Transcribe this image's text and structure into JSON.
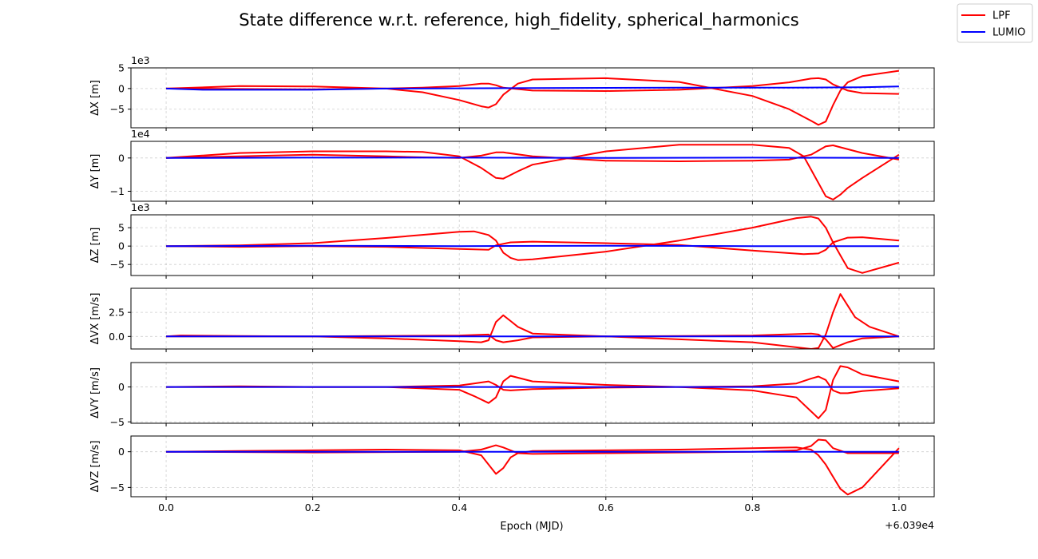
{
  "figure": {
    "title": "State difference w.r.t. reference, high_fidelity, spherical_harmonics",
    "xlabel": "Epoch (MJD)",
    "x_offset_text": "+6.039e4",
    "legend": [
      {
        "label": "LPF",
        "color": "#ff0000"
      },
      {
        "label": "LUMIO",
        "color": "#0000ff"
      }
    ]
  },
  "chart_data": [
    {
      "type": "line",
      "ylabel": "ΔX [m]",
      "exponent_label": "1e3",
      "xlim": [
        -0.048,
        1.048
      ],
      "ylim": [
        -9.5,
        5.0
      ],
      "x_ticks": [
        0.0,
        0.2,
        0.4,
        0.6,
        0.8,
        1.0
      ],
      "x_tick_labels": [
        "0.0",
        "0.2",
        "0.4",
        "0.6",
        "0.8",
        "1.0"
      ],
      "y_ticks": [
        5,
        0,
        -5
      ],
      "y_tick_labels": [
        "5",
        "0",
        "−5"
      ],
      "grid": true,
      "series": [
        {
          "name": "LPF",
          "color": "#ff0000",
          "x": [
            0,
            0.1,
            0.2,
            0.3,
            0.35,
            0.4,
            0.43,
            0.44,
            0.45,
            0.46,
            0.5,
            0.6,
            0.7,
            0.8,
            0.85,
            0.88,
            0.89,
            0.9,
            0.91,
            0.93,
            0.95,
            1.0
          ],
          "y": [
            0,
            0.6,
            0.5,
            0,
            0.2,
            0.6,
            1.2,
            1.2,
            0.8,
            0.2,
            -0.5,
            -0.6,
            -0.3,
            0.6,
            1.5,
            2.4,
            2.5,
            2.2,
            1.0,
            -0.5,
            -1.1,
            -1.3
          ]
        },
        {
          "name": "LPF",
          "color": "#ff0000",
          "x": [
            0,
            0.1,
            0.2,
            0.3,
            0.35,
            0.4,
            0.43,
            0.44,
            0.45,
            0.46,
            0.48,
            0.5,
            0.6,
            0.7,
            0.8,
            0.85,
            0.88,
            0.89,
            0.9,
            0.91,
            0.92,
            0.93,
            0.95,
            1.0
          ],
          "y": [
            0,
            -0.1,
            -0.2,
            0,
            -0.9,
            -2.8,
            -4.3,
            -4.6,
            -3.8,
            -1.5,
            1.2,
            2.2,
            2.5,
            1.6,
            -1.8,
            -5.0,
            -7.8,
            -8.8,
            -8.0,
            -4.0,
            -0.5,
            1.5,
            3.0,
            4.3
          ]
        },
        {
          "name": "LUMIO",
          "color": "#0000ff",
          "x": [
            0,
            0.05,
            0.2,
            0.3,
            0.5,
            0.7,
            0.85,
            0.95,
            1.0
          ],
          "y": [
            0,
            -0.3,
            -0.3,
            0,
            0.1,
            0.2,
            0.2,
            0.3,
            0.5
          ]
        }
      ]
    },
    {
      "type": "line",
      "ylabel": "ΔY [m]",
      "exponent_label": "1e4",
      "xlim": [
        -0.048,
        1.048
      ],
      "ylim": [
        -1.3,
        0.5
      ],
      "x_ticks": [
        0.0,
        0.2,
        0.4,
        0.6,
        0.8,
        1.0
      ],
      "x_tick_labels": [
        "0.0",
        "0.2",
        "0.4",
        "0.6",
        "0.8",
        "1.0"
      ],
      "y_ticks": [
        0,
        -1
      ],
      "y_tick_labels": [
        "0",
        "−1"
      ],
      "grid": true,
      "series": [
        {
          "name": "LPF",
          "color": "#ff0000",
          "x": [
            0,
            0.1,
            0.2,
            0.3,
            0.35,
            0.4,
            0.43,
            0.45,
            0.46,
            0.5,
            0.6,
            0.7,
            0.8,
            0.85,
            0.88,
            0.9,
            0.91,
            0.95,
            1.0
          ],
          "y": [
            0,
            0.05,
            0.1,
            0.05,
            0.02,
            0,
            0.07,
            0.17,
            0.17,
            0.05,
            -0.08,
            -0.1,
            -0.08,
            -0.05,
            0.1,
            0.35,
            0.38,
            0.15,
            -0.05
          ]
        },
        {
          "name": "LPF",
          "color": "#ff0000",
          "x": [
            0,
            0.1,
            0.2,
            0.3,
            0.35,
            0.4,
            0.43,
            0.45,
            0.46,
            0.48,
            0.5,
            0.6,
            0.7,
            0.8,
            0.85,
            0.87,
            0.88,
            0.9,
            0.91,
            0.92,
            0.93,
            0.95,
            1.0
          ],
          "y": [
            0,
            0.15,
            0.2,
            0.2,
            0.18,
            0.05,
            -0.3,
            -0.6,
            -0.62,
            -0.4,
            -0.2,
            0.2,
            0.4,
            0.4,
            0.3,
            0.05,
            -0.35,
            -1.15,
            -1.25,
            -1.1,
            -0.9,
            -0.6,
            0.1
          ]
        },
        {
          "name": "LUMIO",
          "color": "#0000ff",
          "x": [
            0,
            0.2,
            0.4,
            0.6,
            0.8,
            1.0
          ],
          "y": [
            0,
            0.01,
            0.01,
            0,
            0.01,
            0
          ]
        }
      ]
    },
    {
      "type": "line",
      "ylabel": "ΔZ [m]",
      "exponent_label": "1e3",
      "xlim": [
        -0.048,
        1.048
      ],
      "ylim": [
        -8.0,
        8.5
      ],
      "x_ticks": [
        0.0,
        0.2,
        0.4,
        0.6,
        0.8,
        1.0
      ],
      "x_tick_labels": [
        "0.0",
        "0.2",
        "0.4",
        "0.6",
        "0.8",
        "1.0"
      ],
      "y_ticks": [
        5,
        0,
        -5
      ],
      "y_tick_labels": [
        "5",
        "0",
        "−5"
      ],
      "grid": true,
      "series": [
        {
          "name": "LPF",
          "color": "#ff0000",
          "x": [
            0,
            0.1,
            0.2,
            0.3,
            0.4,
            0.42,
            0.44,
            0.45,
            0.46,
            0.47,
            0.48,
            0.5,
            0.6,
            0.7,
            0.8,
            0.86,
            0.88,
            0.89,
            0.9,
            0.91,
            0.92,
            0.93,
            0.95,
            1.0
          ],
          "y": [
            0,
            0.2,
            0.8,
            2.2,
            3.9,
            4.0,
            3.0,
            1.5,
            -1.8,
            -3.2,
            -3.8,
            -3.6,
            -1.5,
            1.5,
            5.0,
            7.6,
            8.0,
            7.5,
            5.0,
            1.0,
            -2.5,
            -6.0,
            -7.3,
            -4.5
          ]
        },
        {
          "name": "LPF",
          "color": "#ff0000",
          "x": [
            0,
            0.1,
            0.2,
            0.3,
            0.4,
            0.44,
            0.45,
            0.47,
            0.5,
            0.6,
            0.7,
            0.8,
            0.87,
            0.89,
            0.9,
            0.91,
            0.93,
            0.95,
            1.0
          ],
          "y": [
            0,
            -0.2,
            0,
            -0.2,
            -0.8,
            -1.0,
            0.2,
            1.0,
            1.2,
            0.8,
            0.3,
            -1.2,
            -2.2,
            -2.0,
            -1.0,
            1.0,
            2.3,
            2.4,
            1.5
          ]
        },
        {
          "name": "LUMIO",
          "color": "#0000ff",
          "x": [
            0,
            0.2,
            0.4,
            0.6,
            0.8,
            1.0
          ],
          "y": [
            0,
            0.1,
            0,
            0.1,
            0,
            0
          ]
        }
      ]
    },
    {
      "type": "line",
      "ylabel": "ΔVX [m/s]",
      "exponent_label": "",
      "xlim": [
        -0.048,
        1.048
      ],
      "ylim": [
        -1.3,
        5.0
      ],
      "x_ticks": [
        0.0,
        0.2,
        0.4,
        0.6,
        0.8,
        1.0
      ],
      "x_tick_labels": [
        "0.0",
        "0.2",
        "0.4",
        "0.6",
        "0.8",
        "1.0"
      ],
      "y_ticks": [
        2.5,
        0.0
      ],
      "y_tick_labels": [
        "2.5",
        "0.0"
      ],
      "grid": true,
      "series": [
        {
          "name": "LPF",
          "color": "#ff0000",
          "x": [
            0,
            0.02,
            0.1,
            0.2,
            0.3,
            0.4,
            0.43,
            0.44,
            0.45,
            0.46,
            0.47,
            0.48,
            0.5,
            0.6,
            0.7,
            0.8,
            0.88,
            0.89,
            0.9,
            0.91,
            0.92,
            0.93,
            0.94,
            0.96,
            1.0
          ],
          "y": [
            0,
            0.1,
            0.05,
            0,
            -0.2,
            -0.5,
            -0.6,
            -0.4,
            1.5,
            2.2,
            1.6,
            1.0,
            0.3,
            0,
            -0.3,
            -0.6,
            -1.3,
            -1.2,
            0.2,
            2.5,
            4.4,
            3.2,
            2.0,
            1.0,
            0
          ]
        },
        {
          "name": "LPF",
          "color": "#ff0000",
          "x": [
            0,
            0.2,
            0.4,
            0.44,
            0.45,
            0.46,
            0.48,
            0.5,
            0.6,
            0.7,
            0.8,
            0.88,
            0.89,
            0.9,
            0.91,
            0.93,
            0.95,
            1.0
          ],
          "y": [
            0,
            0,
            0.1,
            0.2,
            -0.4,
            -0.6,
            -0.4,
            -0.1,
            0,
            0.05,
            0.1,
            0.3,
            0.2,
            -0.3,
            -1.2,
            -0.6,
            -0.2,
            0
          ]
        },
        {
          "name": "LUMIO",
          "color": "#0000ff",
          "x": [
            0,
            0.2,
            0.4,
            0.6,
            0.8,
            1.0
          ],
          "y": [
            0,
            0,
            0,
            0,
            0,
            0
          ]
        }
      ]
    },
    {
      "type": "line",
      "ylabel": "ΔVY [m/s]",
      "exponent_label": "",
      "xlim": [
        -0.048,
        1.048
      ],
      "ylim": [
        -5.2,
        3.5
      ],
      "x_ticks": [
        0.0,
        0.2,
        0.4,
        0.6,
        0.8,
        1.0
      ],
      "x_tick_labels": [
        "0.0",
        "0.2",
        "0.4",
        "0.6",
        "0.8",
        "1.0"
      ],
      "y_ticks": [
        0,
        -5
      ],
      "y_tick_labels": [
        "0",
        "−5"
      ],
      "grid": true,
      "series": [
        {
          "name": "LPF",
          "color": "#ff0000",
          "x": [
            0,
            0.1,
            0.2,
            0.3,
            0.4,
            0.42,
            0.44,
            0.45,
            0.46,
            0.47,
            0.5,
            0.6,
            0.7,
            0.8,
            0.86,
            0.88,
            0.89,
            0.9,
            0.91,
            0.92,
            0.93,
            0.95,
            1.0
          ],
          "y": [
            0,
            0.1,
            0,
            0,
            0.2,
            0.5,
            0.8,
            0.3,
            -0.4,
            -0.5,
            -0.3,
            -0.1,
            0,
            0.1,
            0.5,
            1.2,
            1.5,
            1.0,
            -0.5,
            -0.9,
            -0.9,
            -0.6,
            -0.2
          ]
        },
        {
          "name": "LPF",
          "color": "#ff0000",
          "x": [
            0,
            0.1,
            0.2,
            0.3,
            0.4,
            0.42,
            0.44,
            0.45,
            0.46,
            0.47,
            0.5,
            0.6,
            0.7,
            0.8,
            0.86,
            0.88,
            0.89,
            0.9,
            0.91,
            0.92,
            0.93,
            0.95,
            1.0
          ],
          "y": [
            0,
            0,
            0,
            0,
            -0.4,
            -1.3,
            -2.3,
            -1.5,
            0.8,
            1.6,
            0.8,
            0.3,
            0,
            -0.5,
            -1.5,
            -3.5,
            -4.5,
            -3.3,
            1.0,
            3.0,
            2.8,
            1.8,
            0.8
          ]
        },
        {
          "name": "LUMIO",
          "color": "#0000ff",
          "x": [
            0,
            0.2,
            0.4,
            0.6,
            0.8,
            1.0
          ],
          "y": [
            0,
            0,
            0,
            0,
            0,
            0
          ]
        }
      ]
    },
    {
      "type": "line",
      "ylabel": "ΔVZ [m/s]",
      "exponent_label": "",
      "xlim": [
        -0.048,
        1.048
      ],
      "ylim": [
        -6.3,
        2.2
      ],
      "x_ticks": [
        0.0,
        0.2,
        0.4,
        0.6,
        0.8,
        1.0
      ],
      "x_tick_labels": [
        "0.0",
        "0.2",
        "0.4",
        "0.6",
        "0.8",
        "1.0"
      ],
      "y_ticks": [
        0,
        -5
      ],
      "y_tick_labels": [
        "0",
        "−5"
      ],
      "grid": true,
      "series": [
        {
          "name": "LPF",
          "color": "#ff0000",
          "x": [
            0,
            0.1,
            0.2,
            0.3,
            0.4,
            0.43,
            0.45,
            0.46,
            0.47,
            0.48,
            0.5,
            0.6,
            0.7,
            0.8,
            0.86,
            0.88,
            0.89,
            0.9,
            0.91,
            0.92,
            0.93,
            0.95,
            1.0
          ],
          "y": [
            0,
            0.1,
            0.2,
            0.3,
            0.2,
            -0.5,
            -3.1,
            -2.3,
            -0.8,
            -0.2,
            0.1,
            0.2,
            0.3,
            0.5,
            0.6,
            0.3,
            -0.5,
            -1.8,
            -3.5,
            -5.2,
            -6.0,
            -5.0,
            0.5
          ]
        },
        {
          "name": "LPF",
          "color": "#ff0000",
          "x": [
            0,
            0.2,
            0.4,
            0.43,
            0.45,
            0.46,
            0.48,
            0.5,
            0.6,
            0.7,
            0.8,
            0.86,
            0.88,
            0.89,
            0.9,
            0.91,
            0.93,
            0.95,
            1.0
          ],
          "y": [
            0,
            -0.1,
            0,
            0.3,
            0.9,
            0.6,
            -0.2,
            -0.3,
            -0.2,
            -0.1,
            0,
            0.2,
            0.8,
            1.7,
            1.6,
            0.5,
            -0.2,
            -0.2,
            -0.2
          ]
        },
        {
          "name": "LUMIO",
          "color": "#0000ff",
          "x": [
            0,
            0.2,
            0.4,
            0.6,
            0.8,
            1.0
          ],
          "y": [
            0,
            0,
            0,
            0,
            0,
            0
          ]
        }
      ]
    }
  ]
}
